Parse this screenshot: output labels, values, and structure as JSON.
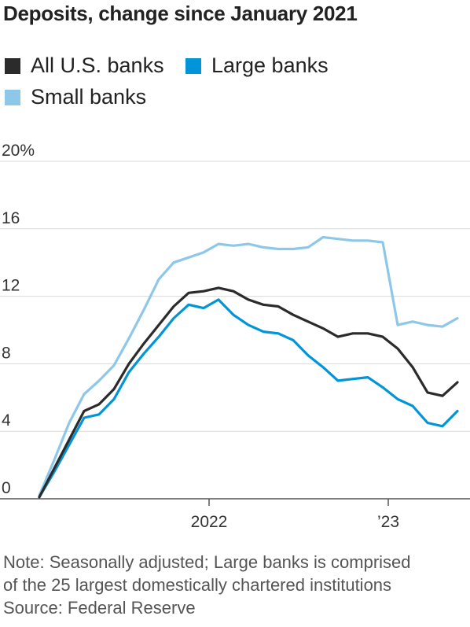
{
  "chart_data": {
    "type": "line",
    "title": "Deposits, change since January 2021",
    "x_tick_labels": [
      "2022",
      "’23"
    ],
    "y_ticks": [
      0,
      4,
      8,
      12,
      16,
      20
    ],
    "y_tick_labels": [
      "0",
      "4",
      "8",
      "12",
      "16",
      "20%"
    ],
    "ylim": [
      0,
      20
    ],
    "x_range": [
      "2021-01",
      "2023-05"
    ],
    "grid": "horizontal",
    "legend_position": "top-left",
    "x": [
      "2021-01",
      "2021-02",
      "2021-03",
      "2021-04",
      "2021-05",
      "2021-06",
      "2021-07",
      "2021-08",
      "2021-09",
      "2021-10",
      "2021-11",
      "2021-12",
      "2022-01",
      "2022-02",
      "2022-03",
      "2022-04",
      "2022-05",
      "2022-06",
      "2022-07",
      "2022-08",
      "2022-09",
      "2022-10",
      "2022-11",
      "2022-12",
      "2023-01",
      "2023-02",
      "2023-03",
      "2023-04",
      "2023-05"
    ],
    "series": [
      {
        "name": "All U.S. banks",
        "color": "#2b2b2b",
        "values": [
          0.1,
          1.8,
          3.5,
          5.2,
          5.6,
          6.5,
          8.0,
          9.2,
          10.3,
          11.4,
          12.2,
          12.3,
          12.5,
          12.3,
          11.8,
          11.5,
          11.4,
          10.9,
          10.5,
          10.1,
          9.6,
          9.8,
          9.8,
          9.6,
          8.9,
          7.8,
          6.3,
          6.1,
          6.9
        ]
      },
      {
        "name": "Large banks",
        "color": "#0095d8",
        "values": [
          0.1,
          1.6,
          3.2,
          4.8,
          5.0,
          5.9,
          7.5,
          8.6,
          9.6,
          10.7,
          11.5,
          11.3,
          11.8,
          10.9,
          10.3,
          9.9,
          9.8,
          9.4,
          8.5,
          7.8,
          7.0,
          7.1,
          7.2,
          6.6,
          5.9,
          5.5,
          4.5,
          4.3,
          5.2
        ]
      },
      {
        "name": "Small banks",
        "color": "#8ec8e8",
        "values": [
          0.2,
          2.3,
          4.5,
          6.2,
          7.0,
          7.9,
          9.5,
          11.2,
          13.0,
          14.0,
          14.3,
          14.6,
          15.1,
          15.0,
          15.1,
          14.9,
          14.8,
          14.8,
          14.9,
          15.5,
          15.4,
          15.3,
          15.3,
          15.2,
          10.3,
          10.5,
          10.3,
          10.2,
          10.7
        ]
      }
    ]
  },
  "notes": [
    "Note: Seasonally adjusted; Large banks is comprised",
    "of the 25 largest domestically chartered institutions",
    "Source: Federal Reserve"
  ]
}
